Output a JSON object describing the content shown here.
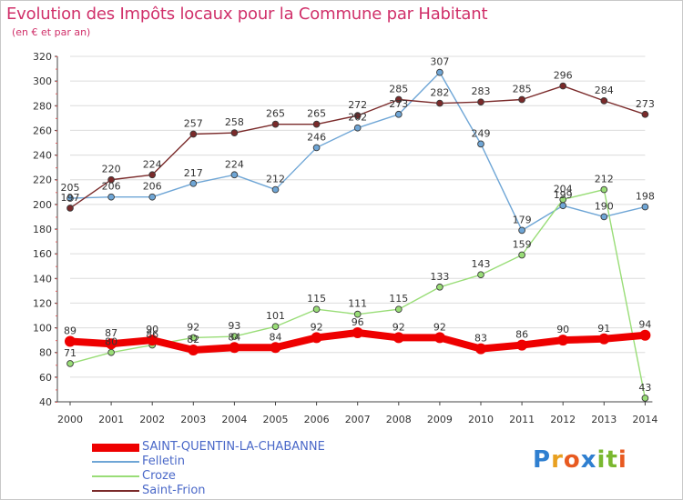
{
  "chart_data": {
    "type": "line",
    "title": "Evolution des Impôts locaux pour la Commune par Habitant",
    "subtitle": "(en € et par an)",
    "xlabel": "",
    "ylabel": "",
    "categories": [
      "2000",
      "2001",
      "2002",
      "2003",
      "2004",
      "2005",
      "2006",
      "2007",
      "2008",
      "2009",
      "2010",
      "2011",
      "2012",
      "2013",
      "2014"
    ],
    "ylim": [
      40,
      320
    ],
    "yticks": [
      40,
      60,
      80,
      100,
      120,
      140,
      160,
      180,
      200,
      220,
      240,
      260,
      280,
      300,
      320
    ],
    "grid": "horizontal",
    "legend_position": "bottom-left",
    "series": [
      {
        "name": "SAINT-QUENTIN-LA-CHABANNE",
        "color": "#ee0000",
        "values": [
          89,
          87,
          90,
          82,
          84,
          84,
          92,
          96,
          92,
          92,
          83,
          86,
          90,
          91,
          94
        ]
      },
      {
        "name": "Felletin",
        "color": "#6fa6d6",
        "values": [
          205,
          206,
          206,
          217,
          224,
          212,
          246,
          262,
          273,
          307,
          249,
          179,
          199,
          190,
          198
        ]
      },
      {
        "name": "Croze",
        "color": "#99dd77",
        "values": [
          71,
          80,
          86,
          92,
          93,
          101,
          115,
          111,
          115,
          133,
          143,
          159,
          204,
          212,
          43
        ]
      },
      {
        "name": "Saint-Frion",
        "color": "#7a2a2a",
        "values": [
          197,
          220,
          224,
          257,
          258,
          265,
          265,
          272,
          285,
          282,
          283,
          285,
          296,
          284,
          273
        ]
      }
    ]
  },
  "logo": {
    "text": "Proxiti",
    "letters": [
      "P",
      "r",
      "o",
      "x",
      "i",
      "t",
      "i"
    ]
  }
}
